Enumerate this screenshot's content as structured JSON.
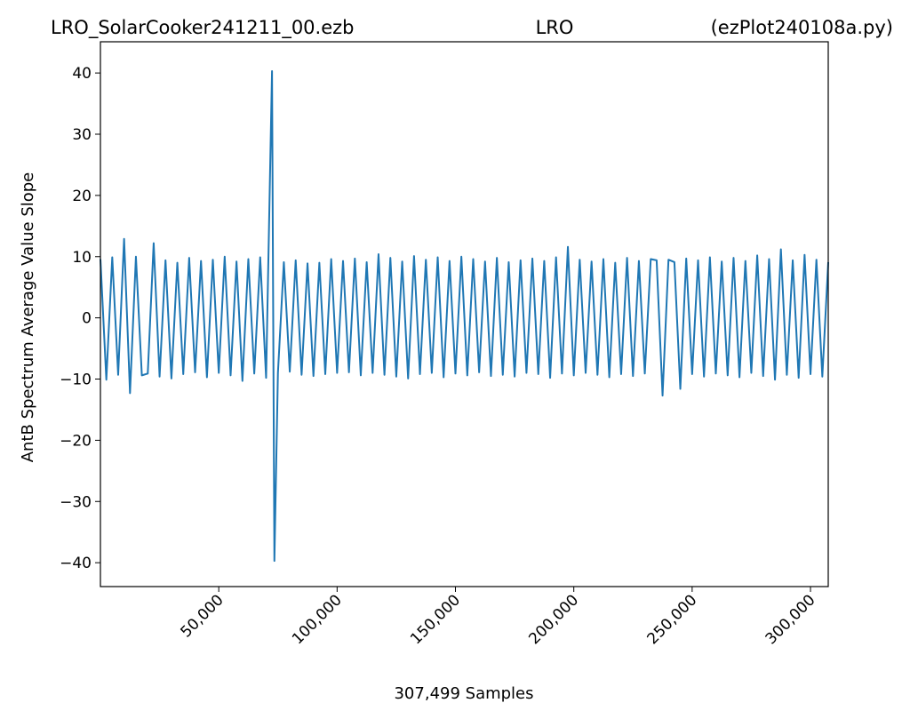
{
  "chart_data": {
    "type": "line",
    "title": [
      "LRO_SolarCooker241211_00.ezb",
      "LRO",
      "(ezPlot240108a.py)"
    ],
    "xlabel": "307,499 Samples",
    "ylabel": "AntB Spectrum Average Value Slope",
    "x": [
      1,
      2500,
      5000,
      7500,
      10000,
      12500,
      15000,
      17500,
      20000,
      22500,
      25000,
      27500,
      30000,
      32500,
      35000,
      37500,
      40000,
      42500,
      45000,
      47500,
      50000,
      52500,
      55000,
      57500,
      60000,
      62500,
      65000,
      67500,
      70000,
      72500,
      73500,
      75000,
      77500,
      80000,
      82500,
      85000,
      87500,
      90000,
      92500,
      95000,
      97500,
      100000,
      102500,
      105000,
      107500,
      110000,
      112500,
      115000,
      117500,
      120000,
      122500,
      125000,
      127500,
      130000,
      132500,
      135000,
      137500,
      140000,
      142500,
      145000,
      147500,
      150000,
      152500,
      155000,
      157500,
      160000,
      162500,
      165000,
      167500,
      170000,
      172500,
      175000,
      177500,
      180000,
      182500,
      185000,
      187500,
      190000,
      192500,
      195000,
      197500,
      200000,
      202500,
      205000,
      207500,
      210000,
      212500,
      215000,
      217500,
      220000,
      222500,
      225000,
      227500,
      230000,
      232500,
      235000,
      237500,
      240000,
      242500,
      245000,
      247500,
      250000,
      252500,
      255000,
      257500,
      260000,
      262500,
      265000,
      267500,
      270000,
      272500,
      275000,
      277500,
      280000,
      282500,
      285000,
      287500,
      290000,
      292500,
      295000,
      297500,
      300000,
      302500,
      305000,
      307499
    ],
    "series": [
      {
        "color": "#1f77b4",
        "values": [
          9.6,
          -10.1,
          9.9,
          -9.3,
          12.9,
          -12.3,
          10.0,
          -9.4,
          -9.1,
          12.2,
          -9.6,
          9.4,
          -9.9,
          9.0,
          -9.2,
          9.8,
          -8.9,
          9.3,
          -9.7,
          9.5,
          -9.0,
          10.0,
          -9.4,
          9.2,
          -10.3,
          9.6,
          -9.1,
          9.9,
          -9.8,
          40.3,
          -39.7,
          -9.0,
          9.1,
          -8.8,
          9.4,
          -9.3,
          8.9,
          -9.5,
          9.0,
          -9.2,
          9.6,
          -9.0,
          9.3,
          -8.9,
          9.7,
          -9.4,
          9.1,
          -9.0,
          10.4,
          -9.3,
          9.8,
          -9.6,
          9.2,
          -9.9,
          10.1,
          -9.2,
          9.5,
          -9.0,
          9.9,
          -9.7,
          9.3,
          -9.1,
          10.0,
          -9.4,
          9.6,
          -8.9,
          9.2,
          -9.5,
          9.8,
          -9.3,
          9.1,
          -9.6,
          9.4,
          -9.0,
          9.7,
          -9.2,
          9.3,
          -9.8,
          9.9,
          -9.1,
          11.6,
          -9.4,
          9.5,
          -9.0,
          9.2,
          -9.3,
          9.6,
          -9.7,
          9.0,
          -9.2,
          9.8,
          -9.5,
          9.3,
          -9.1,
          9.6,
          9.4,
          -12.7,
          9.5,
          9.1,
          -11.6,
          9.7,
          -9.2,
          9.4,
          -9.6,
          9.9,
          -9.1,
          9.2,
          -9.4,
          9.8,
          -9.7,
          9.3,
          -9.0,
          10.2,
          -9.5,
          9.6,
          -10.1,
          11.2,
          -9.3,
          9.4,
          -9.8,
          10.3,
          -9.2,
          9.5,
          -9.6,
          9.1
        ]
      }
    ],
    "xlim": [
      1,
      307499
    ],
    "xticks": [
      {
        "value": 50000,
        "label": "50,000"
      },
      {
        "value": 100000,
        "label": "100,000"
      },
      {
        "value": 150000,
        "label": "150,000"
      },
      {
        "value": 200000,
        "label": "200,000"
      },
      {
        "value": 250000,
        "label": "250,000"
      },
      {
        "value": 300000,
        "label": "300,000"
      }
    ],
    "ylim": [
      -43.9,
      45.1
    ],
    "yticks": [
      {
        "value": -40,
        "label": "−40"
      },
      {
        "value": -30,
        "label": "−30"
      },
      {
        "value": -20,
        "label": "−20"
      },
      {
        "value": -10,
        "label": "−10"
      },
      0,
      10,
      20,
      30,
      40
    ]
  }
}
